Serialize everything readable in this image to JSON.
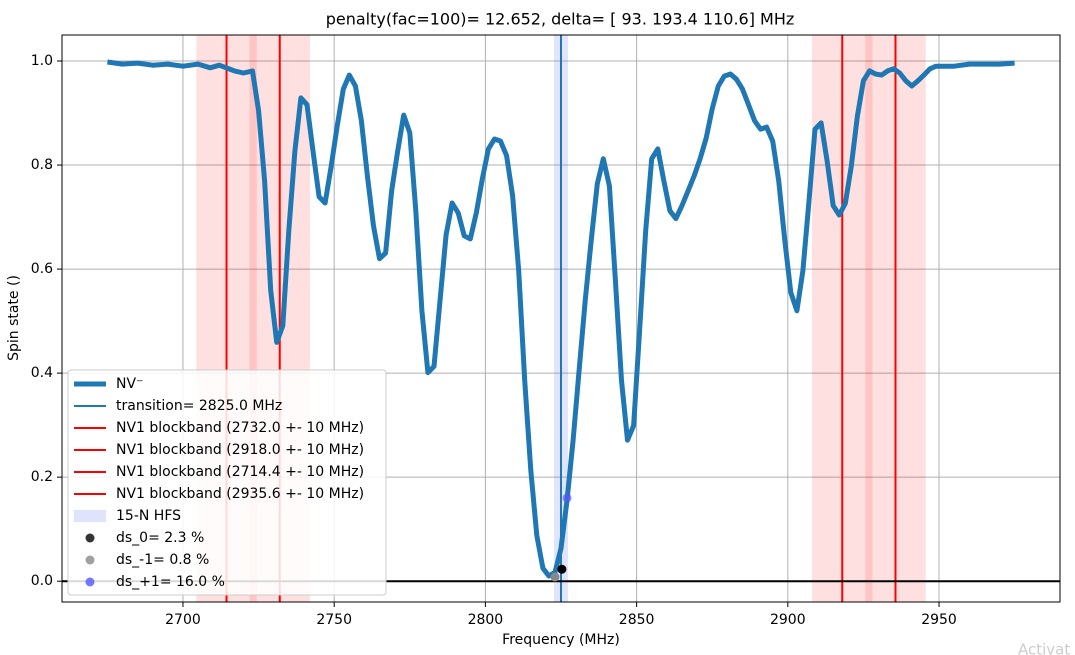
{
  "chart_data": {
    "type": "line",
    "title": "penalty(fac=100)= 12.652, delta= [ 93.  193.4 110.6] MHz",
    "xlabel": "Frequency (MHz)",
    "ylabel": "Spin state ()",
    "xlim": [
      2660,
      2990
    ],
    "ylim": [
      -0.04,
      1.05
    ],
    "xticks": [
      2700,
      2750,
      2800,
      2850,
      2900,
      2950
    ],
    "yticks": [
      {
        "value": 0,
        "label": "0.0"
      },
      0.2,
      0.4,
      0.6,
      0.8,
      {
        "value": 1,
        "label": "1.0"
      }
    ],
    "grid": true,
    "legend": "lower left",
    "hline": {
      "y": 0,
      "color": "#000000"
    },
    "series": [
      {
        "name": "NV⁻",
        "color": "#1f77b4",
        "x": [
          2675,
          2680,
          2685,
          2690,
          2695,
          2700,
          2705,
          2709,
          2712,
          2717,
          2720,
          2723,
          2725,
          2727,
          2729,
          2731,
          2733,
          2735,
          2737,
          2739,
          2741,
          2743,
          2745,
          2747,
          2749,
          2751,
          2753,
          2755,
          2757,
          2759,
          2761,
          2763,
          2765,
          2767,
          2769,
          2771,
          2773,
          2775,
          2777,
          2779,
          2781,
          2783,
          2785,
          2787,
          2789,
          2791,
          2793,
          2795,
          2797,
          2799,
          2801,
          2803,
          2805,
          2807,
          2809,
          2811,
          2813,
          2815,
          2817,
          2819,
          2821,
          2823,
          2825,
          2827,
          2829,
          2831,
          2833,
          2835,
          2837,
          2839,
          2841,
          2843,
          2845,
          2847,
          2849,
          2851,
          2853,
          2855,
          2857,
          2859,
          2861,
          2863,
          2865,
          2867,
          2869,
          2871,
          2873,
          2875,
          2877,
          2879,
          2881,
          2883,
          2885,
          2887,
          2889,
          2891,
          2893,
          2895,
          2897,
          2899,
          2901,
          2903,
          2905,
          2907,
          2909,
          2911,
          2913,
          2915,
          2917,
          2919,
          2921,
          2923,
          2925,
          2927,
          2929,
          2931,
          2933,
          2935,
          2937,
          2939,
          2941,
          2943,
          2945,
          2947,
          2949,
          2951,
          2955,
          2960,
          2965,
          2970,
          2975
        ],
        "values": [
          0.998,
          0.994,
          0.996,
          0.992,
          0.994,
          0.99,
          0.994,
          0.987,
          0.992,
          0.981,
          0.977,
          0.981,
          0.904,
          0.77,
          0.559,
          0.459,
          0.491,
          0.674,
          0.827,
          0.929,
          0.916,
          0.827,
          0.739,
          0.727,
          0.798,
          0.875,
          0.946,
          0.973,
          0.952,
          0.885,
          0.779,
          0.683,
          0.62,
          0.631,
          0.75,
          0.827,
          0.896,
          0.862,
          0.712,
          0.52,
          0.401,
          0.413,
          0.539,
          0.666,
          0.727,
          0.708,
          0.664,
          0.658,
          0.708,
          0.774,
          0.831,
          0.85,
          0.846,
          0.818,
          0.741,
          0.597,
          0.386,
          0.213,
          0.088,
          0.025,
          0.01,
          0.017,
          0.063,
          0.155,
          0.271,
          0.405,
          0.539,
          0.655,
          0.764,
          0.812,
          0.76,
          0.578,
          0.386,
          0.271,
          0.299,
          0.482,
          0.674,
          0.812,
          0.831,
          0.77,
          0.712,
          0.697,
          0.722,
          0.75,
          0.779,
          0.812,
          0.852,
          0.908,
          0.952,
          0.971,
          0.975,
          0.965,
          0.946,
          0.916,
          0.885,
          0.869,
          0.873,
          0.846,
          0.77,
          0.655,
          0.555,
          0.52,
          0.597,
          0.731,
          0.869,
          0.881,
          0.808,
          0.722,
          0.704,
          0.726,
          0.798,
          0.894,
          0.962,
          0.981,
          0.975,
          0.973,
          0.981,
          0.985,
          0.977,
          0.962,
          0.952,
          0.962,
          0.973,
          0.985,
          0.99,
          0.99,
          0.99,
          0.994,
          0.994,
          0.994,
          0.996
        ]
      }
    ],
    "vlines": [
      {
        "name": "transition= 2825.0 MHz",
        "x": 2825,
        "color": "#1f77b4"
      },
      {
        "name": "NV1 blockband (2732.0 +- 10 MHz)",
        "x": 2732,
        "color": "#ff0000",
        "band": [
          2722,
          2742
        ]
      },
      {
        "name": "NV1 blockband (2918.0 +- 10 MHz)",
        "x": 2918,
        "color": "#ff0000",
        "band": [
          2908,
          2928
        ]
      },
      {
        "name": "NV1 blockband (2714.4 +- 10 MHz)",
        "x": 2714.4,
        "color": "#ff0000",
        "band": [
          2704.4,
          2724.4
        ]
      },
      {
        "name": "NV1 blockband (2935.6 +- 10 MHz)",
        "x": 2935.6,
        "color": "#ff0000",
        "band": [
          2925.6,
          2945.6
        ]
      }
    ],
    "hfs_band": {
      "name": "15-N HFS",
      "x": [
        2822.7,
        2827.3
      ],
      "color": "#6677ee"
    },
    "points": [
      {
        "name": "ds_0= 2.3 %",
        "x": 2825.3,
        "y": 0.023,
        "color": "#000000"
      },
      {
        "name": "ds_-1= 0.8 %",
        "x": 2823,
        "y": 0.008,
        "color": "#888888"
      },
      {
        "name": "ds_+1= 16.0 %",
        "x": 2827,
        "y": 0.16,
        "color": "#5555ff"
      }
    ],
    "watermark": "Activat"
  }
}
